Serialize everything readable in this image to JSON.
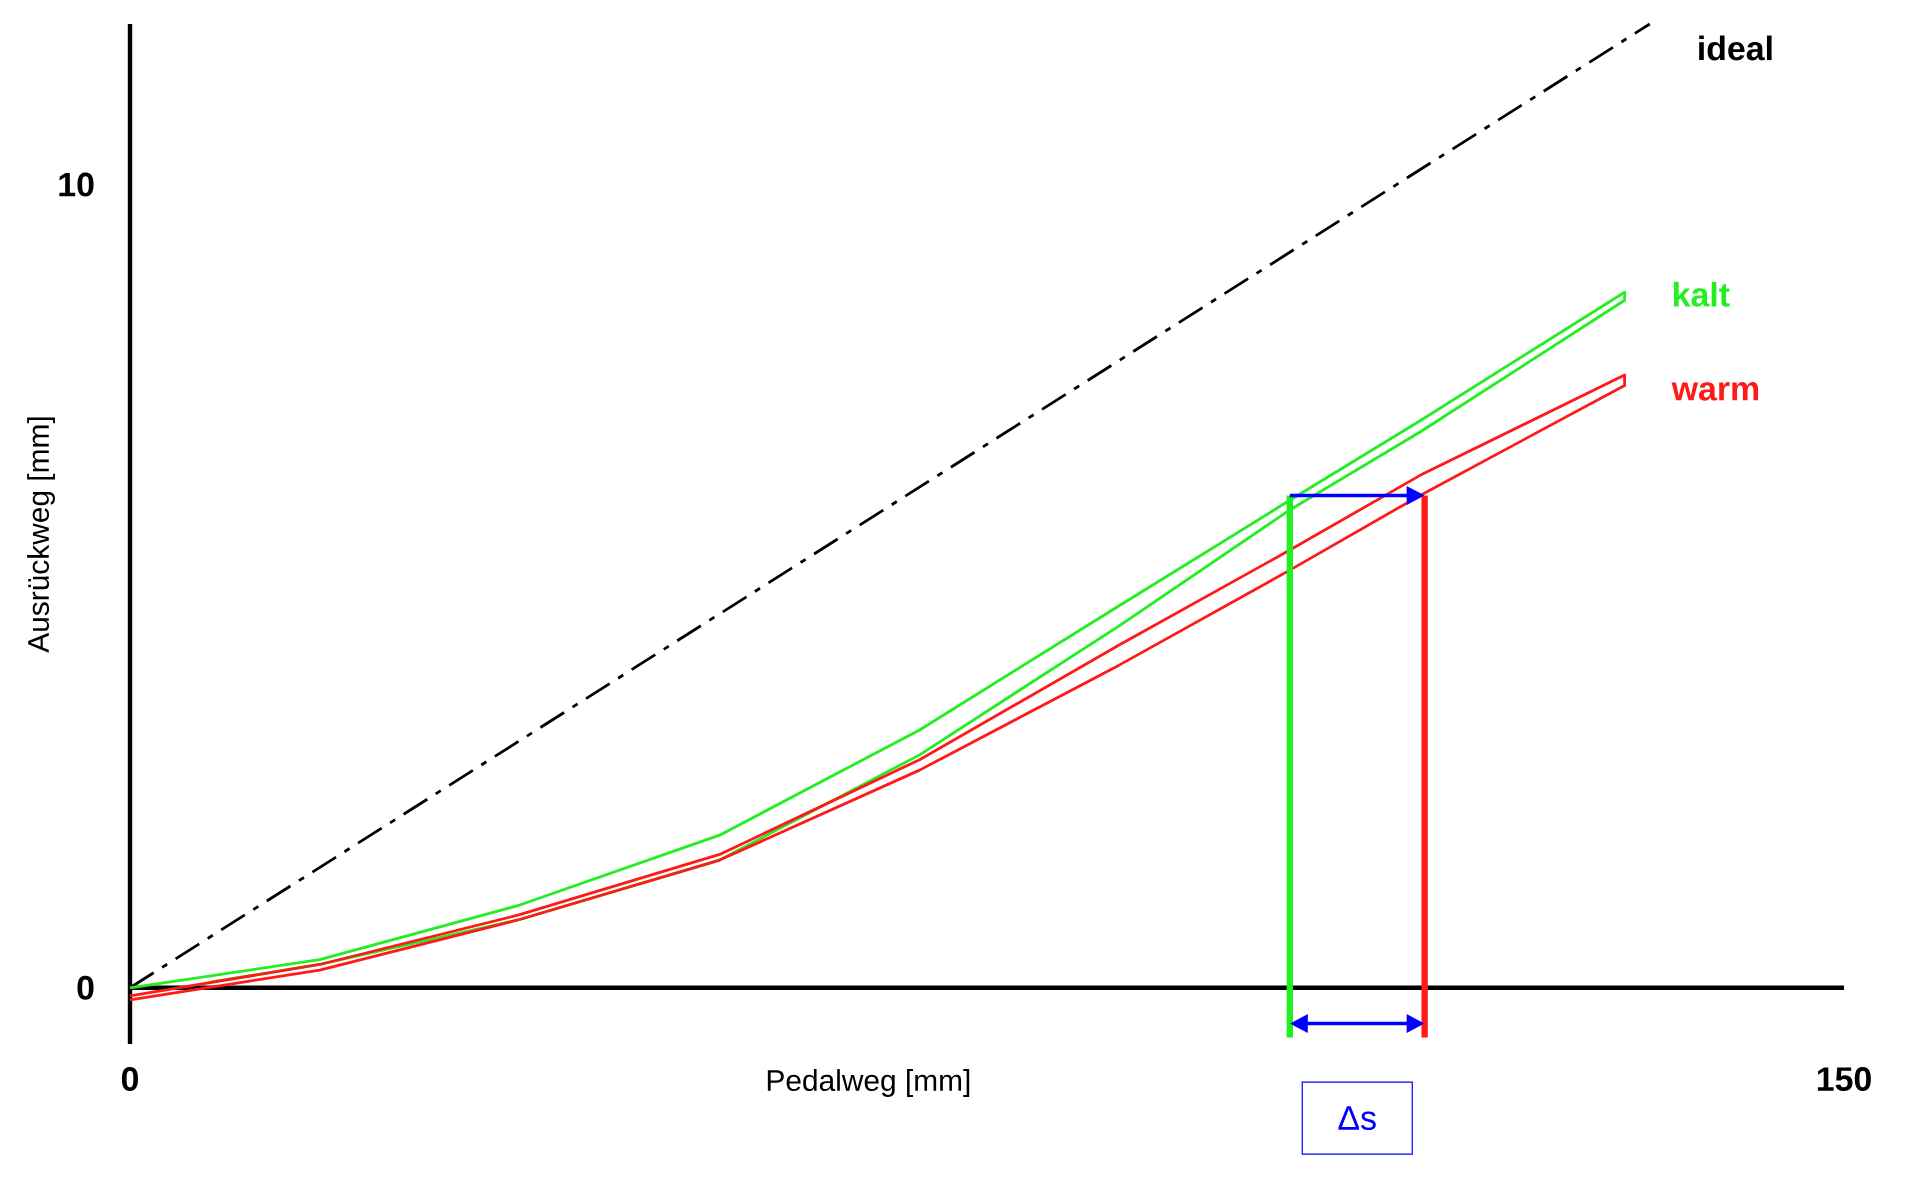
{
  "chart_data": {
    "type": "line",
    "xlabel": "Pedalweg [mm]",
    "ylabel": "Ausrückweg [mm]",
    "xlim": [
      0,
      150
    ],
    "ylim": [
      -0.7,
      12
    ],
    "xticks": [
      0,
      150
    ],
    "yticks": [
      0,
      10
    ],
    "legend": false,
    "marker": "none",
    "series": [
      {
        "name": "ideal",
        "color": "#000000",
        "line_style": "dashdot",
        "x": [
          0,
          133
        ],
        "values": [
          0,
          12
        ]
      },
      {
        "name": "kalt",
        "color": "#22ee22",
        "x": [
          0,
          16.6,
          34.1,
          51.6,
          69.1,
          86.6,
          101.5,
          112.9,
          130.8,
          130.8,
          112.9,
          101.5,
          86.6,
          69.1,
          51.6,
          34.1,
          16.6,
          7.0
        ],
        "values": [
          0.0,
          0.35,
          1.03,
          1.9,
          3.21,
          4.76,
          6.07,
          7.06,
          8.66,
          8.56,
          6.92,
          5.95,
          4.51,
          2.9,
          1.59,
          0.85,
          0.29,
          0.07
        ]
      },
      {
        "name": "warm",
        "color": "#ff1a1a",
        "x": [
          0,
          16.6,
          34.1,
          51.6,
          69.1,
          86.6,
          101.5,
          112.9,
          130.8,
          130.8,
          112.9,
          101.5,
          86.6,
          69.1,
          51.6,
          34.1,
          16.6,
          0
        ],
        "values": [
          -0.1,
          0.29,
          0.91,
          1.66,
          2.84,
          4.27,
          5.45,
          6.38,
          7.63,
          7.5,
          6.13,
          5.2,
          4.02,
          2.71,
          1.59,
          0.85,
          0.22,
          -0.15
        ]
      },
      {
        "color": "#22ee22",
        "x": [
          101.5,
          101.5
        ],
        "values": [
          -0.62,
          6.13
        ]
      },
      {
        "color": "#ff1a1a",
        "x": [
          113.3,
          113.3
        ],
        "values": [
          -0.62,
          6.13
        ]
      }
    ],
    "annotations": [
      "Δs"
    ]
  }
}
